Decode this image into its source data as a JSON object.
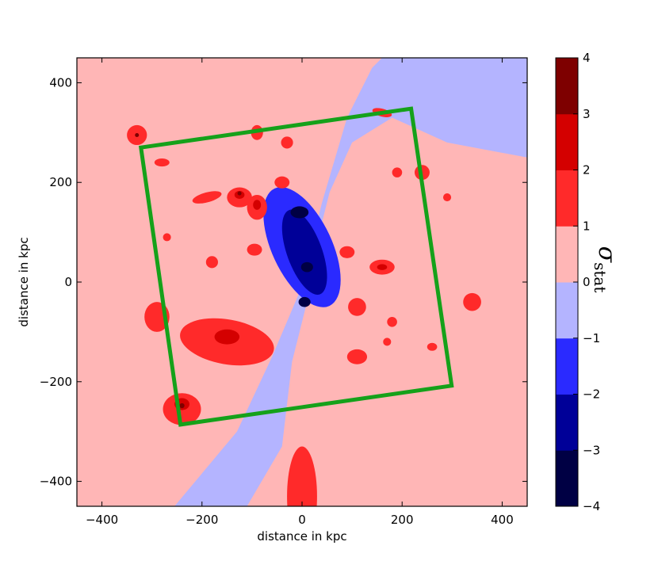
{
  "chart_data": {
    "type": "heatmap",
    "title": "",
    "xlabel": "distance in kpc",
    "ylabel": "distance in kpc",
    "xlim": [
      -450,
      450
    ],
    "ylim": [
      -450,
      450
    ],
    "xticks": [
      -400,
      -200,
      0,
      200,
      400
    ],
    "yticks": [
      -400,
      -200,
      0,
      200,
      400
    ],
    "xtick_labels": [
      "−400",
      "−200",
      "0",
      "200",
      "400"
    ],
    "ytick_labels": [
      "−400",
      "−200",
      "0",
      "200",
      "400"
    ],
    "colorbar": {
      "label_symbol": "σ",
      "label_subscript": "stat",
      "levels": [
        -4,
        -3,
        -2,
        -1,
        0,
        1,
        2,
        3,
        4
      ],
      "tick_labels": [
        "−4",
        "−3",
        "−2",
        "−1",
        "0",
        "1",
        "2",
        "3",
        "4"
      ],
      "colors": [
        "#000044",
        "#000098",
        "#2a2aff",
        "#b4b4ff",
        "#ffb6b6",
        "#ff2a2a",
        "#d40000",
        "#7e0000"
      ]
    },
    "outline_polygon": {
      "color": "#15a11a",
      "points": [
        [
          -322,
          270
        ],
        [
          218,
          348
        ],
        [
          299,
          -208
        ],
        [
          -243,
          -286
        ]
      ]
    },
    "blue_band": [
      [
        -255,
        -450
      ],
      [
        -130,
        -300
      ],
      [
        -60,
        -150
      ],
      [
        -5,
        -20
      ],
      [
        40,
        160
      ],
      [
        90,
        330
      ],
      [
        140,
        430
      ],
      [
        160,
        450
      ],
      [
        450,
        450
      ],
      [
        450,
        250
      ],
      [
        290,
        280
      ],
      [
        180,
        330
      ],
      [
        100,
        280
      ],
      [
        55,
        180
      ],
      [
        30,
        80
      ],
      [
        10,
        -40
      ],
      [
        -20,
        -160
      ],
      [
        -40,
        -330
      ],
      [
        -110,
        -450
      ]
    ],
    "deep_regions": [
      {
        "level": -2,
        "cx": 0,
        "cy": 70,
        "rx": 60,
        "ry": 130,
        "rot": -25
      },
      {
        "level": -3,
        "cx": 5,
        "cy": 60,
        "rx": 35,
        "ry": 90,
        "rot": -20
      },
      {
        "level": -4,
        "cx": -5,
        "cy": 140,
        "rx": 18,
        "ry": 12,
        "rot": 0
      },
      {
        "level": -4,
        "cx": 10,
        "cy": 30,
        "rx": 12,
        "ry": 10,
        "rot": 0
      },
      {
        "level": -4,
        "cx": 5,
        "cy": -40,
        "rx": 12,
        "ry": 10,
        "rot": 0
      }
    ],
    "positive_regions": [
      {
        "level": 1,
        "cx": -150,
        "cy": -120,
        "rx": 95,
        "ry": 45,
        "rot": 10
      },
      {
        "level": 1,
        "cx": -240,
        "cy": -255,
        "rx": 38,
        "ry": 32,
        "rot": 0
      },
      {
        "level": 1,
        "cx": 0,
        "cy": -430,
        "rx": 30,
        "ry": 100,
        "rot": 0
      },
      {
        "level": 1,
        "cx": -330,
        "cy": 295,
        "rx": 20,
        "ry": 20,
        "rot": 0
      },
      {
        "level": 1,
        "cx": -290,
        "cy": -70,
        "rx": 25,
        "ry": 30,
        "rot": 0
      },
      {
        "level": 1,
        "cx": -125,
        "cy": 170,
        "rx": 25,
        "ry": 20,
        "rot": 0
      },
      {
        "level": 1,
        "cx": -90,
        "cy": 150,
        "rx": 20,
        "ry": 25,
        "rot": 0
      },
      {
        "level": 1,
        "cx": -190,
        "cy": 170,
        "rx": 30,
        "ry": 10,
        "rot": -15
      },
      {
        "level": 1,
        "cx": 160,
        "cy": 30,
        "rx": 25,
        "ry": 15,
        "rot": 0
      },
      {
        "level": 1,
        "cx": 110,
        "cy": -150,
        "rx": 20,
        "ry": 15,
        "rot": 0
      },
      {
        "level": 1,
        "cx": 340,
        "cy": -40,
        "rx": 18,
        "ry": 18,
        "rot": 0
      },
      {
        "level": 1,
        "cx": 240,
        "cy": 220,
        "rx": 15,
        "ry": 15,
        "rot": 0
      },
      {
        "level": 1,
        "cx": 110,
        "cy": -50,
        "rx": 18,
        "ry": 18,
        "rot": 0
      },
      {
        "level": 1,
        "cx": -95,
        "cy": 65,
        "rx": 15,
        "ry": 12,
        "rot": 0
      },
      {
        "level": 1,
        "cx": -180,
        "cy": 40,
        "rx": 12,
        "ry": 12,
        "rot": 0
      },
      {
        "level": 1,
        "cx": -90,
        "cy": 300,
        "rx": 12,
        "ry": 15,
        "rot": 0
      },
      {
        "level": 1,
        "cx": -30,
        "cy": 280,
        "rx": 12,
        "ry": 12,
        "rot": 0
      },
      {
        "level": 1,
        "cx": 160,
        "cy": 340,
        "rx": 20,
        "ry": 8,
        "rot": 15
      },
      {
        "level": 1,
        "cx": 90,
        "cy": 60,
        "rx": 15,
        "ry": 12,
        "rot": 0
      },
      {
        "level": 1,
        "cx": 180,
        "cy": -80,
        "rx": 10,
        "ry": 10,
        "rot": 0
      },
      {
        "level": 1,
        "cx": -40,
        "cy": 200,
        "rx": 15,
        "ry": 12,
        "rot": 0
      },
      {
        "level": 1,
        "cx": 170,
        "cy": -120,
        "rx": 8,
        "ry": 8,
        "rot": 0
      },
      {
        "level": 1,
        "cx": 290,
        "cy": 170,
        "rx": 8,
        "ry": 8,
        "rot": 0
      },
      {
        "level": 1,
        "cx": 260,
        "cy": -130,
        "rx": 10,
        "ry": 8,
        "rot": 0
      },
      {
        "level": 1,
        "cx": 190,
        "cy": 220,
        "rx": 10,
        "ry": 10,
        "rot": 0
      },
      {
        "level": 1,
        "cx": -270,
        "cy": 90,
        "rx": 8,
        "ry": 8,
        "rot": 0
      },
      {
        "level": 1,
        "cx": -280,
        "cy": 240,
        "rx": 15,
        "ry": 8,
        "rot": 0
      },
      {
        "level": 2,
        "cx": -150,
        "cy": -110,
        "rx": 25,
        "ry": 15,
        "rot": 0
      },
      {
        "level": 2,
        "cx": -240,
        "cy": -245,
        "rx": 15,
        "ry": 12,
        "rot": 0
      },
      {
        "level": 2,
        "cx": -125,
        "cy": 175,
        "rx": 10,
        "ry": 8,
        "rot": 0
      },
      {
        "level": 2,
        "cx": -90,
        "cy": 155,
        "rx": 8,
        "ry": 10,
        "rot": 0
      },
      {
        "level": 2,
        "cx": 160,
        "cy": 30,
        "rx": 10,
        "ry": 6,
        "rot": 0
      },
      {
        "level": 3,
        "cx": -240,
        "cy": -248,
        "rx": 5,
        "ry": 5,
        "rot": 0
      },
      {
        "level": 3,
        "cx": -125,
        "cy": 178,
        "rx": 4,
        "ry": 4,
        "rot": 0
      },
      {
        "level": 3,
        "cx": -330,
        "cy": 295,
        "rx": 4,
        "ry": 4,
        "rot": 0
      }
    ]
  }
}
